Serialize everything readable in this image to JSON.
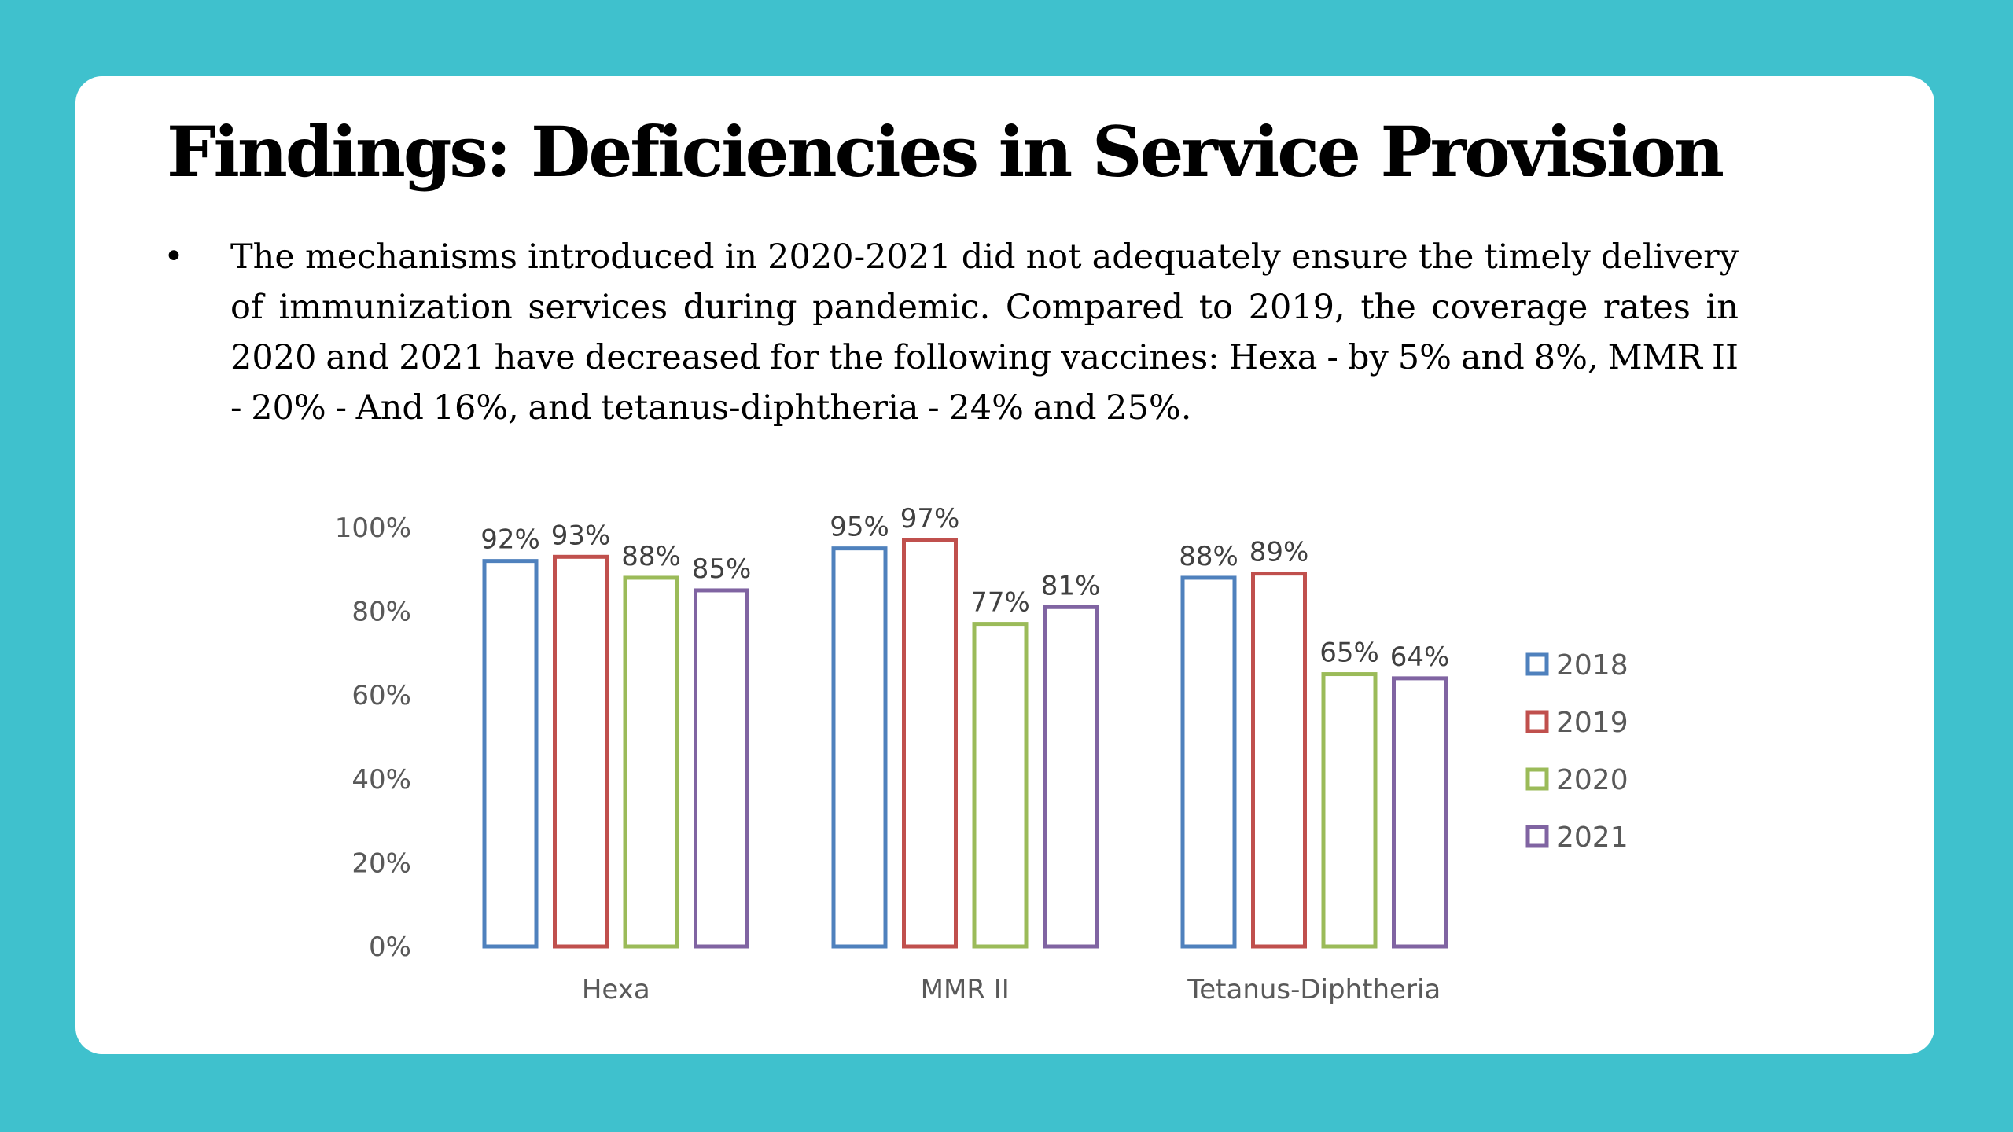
{
  "slide": {
    "title": "Findings: Deficiencies in Service Provision",
    "bullet_symbol": "•",
    "bullet_text": "The mechanisms introduced in 2020-2021 did not adequately ensure the timely delivery of immunization services during pandemic. Compared to 2019, the coverage rates in 2020 and 2021 have decreased for the following vaccines: Hexa - by 5% and 8%, MMR II - 20% - And 16%, and tetanus-diphtheria - 24% and 25%."
  },
  "colors": {
    "background": "#3fc1cd",
    "panel": "#ffffff"
  },
  "chart_data": {
    "type": "bar",
    "categories": [
      "Hexa",
      "MMR II",
      "Tetanus-Diphtheria"
    ],
    "series": [
      {
        "name": "2018",
        "color": "#4f81bd",
        "values": [
          92,
          95,
          88
        ]
      },
      {
        "name": "2019",
        "color": "#c0504d",
        "values": [
          93,
          97,
          89
        ]
      },
      {
        "name": "2020",
        "color": "#9bbb59",
        "values": [
          88,
          77,
          65
        ]
      },
      {
        "name": "2021",
        "color": "#8064a2",
        "values": [
          85,
          81,
          64
        ]
      }
    ],
    "data_labels": [
      [
        "92%",
        "95%",
        "88%"
      ],
      [
        "93%",
        "97%",
        "89%"
      ],
      [
        "88%",
        "77%",
        "65%"
      ],
      [
        "85%",
        "81%",
        "64%"
      ]
    ],
    "y_ticks": [
      "0%",
      "20%",
      "40%",
      "60%",
      "80%",
      "100%"
    ],
    "ylim": [
      0,
      100
    ],
    "unit": "%",
    "grid": false,
    "bar_style": "outline",
    "legend_position": "right"
  }
}
